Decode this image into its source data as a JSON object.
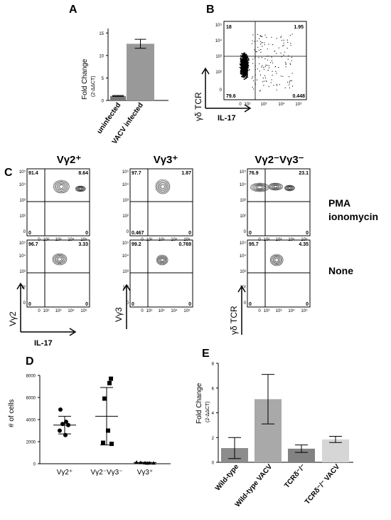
{
  "panels": {
    "A": "A",
    "B": "B",
    "C": "C",
    "D": "D",
    "E": "E"
  },
  "panel_a": {
    "ylabel": "Fold Change",
    "ylabel_sub": "(2-ΔΔCT)",
    "yticks": [
      "0",
      "5",
      "10",
      "15"
    ],
    "categories": [
      "uninfected",
      "VACV infected"
    ],
    "values": [
      1.0,
      12.6
    ],
    "errors": [
      0.1,
      1.0
    ],
    "ylim": [
      0,
      16
    ]
  },
  "panel_b": {
    "ylabel": "γδ TCR",
    "xlabel": "IL-17",
    "quadrants": {
      "ul": "18",
      "ur": "1.95",
      "ll": "79.6",
      "lr": "0.448"
    },
    "yticks": [
      "10⁵",
      "10⁴",
      "10³",
      "10²",
      "0"
    ],
    "xticks": [
      "0",
      "10²",
      "10³",
      "10⁴",
      "10⁵"
    ]
  },
  "panel_c": {
    "col_titles": [
      "Vγ2⁺",
      "Vγ3⁺",
      "Vγ2⁻Vγ3⁻"
    ],
    "row_labels": {
      "stim_1": "PMA",
      "stim_2": "ionomycin",
      "none": "None"
    },
    "ylabels": [
      "Vγ2",
      "Vγ3",
      "γδ TCR"
    ],
    "xlabel": "IL-17",
    "yticks": [
      "10⁵",
      "10⁴",
      "10³",
      "10²",
      "0"
    ],
    "xticks": [
      "0",
      "10²",
      "10³",
      "10⁴",
      "10⁵"
    ],
    "plots": [
      {
        "ul": "91.4",
        "ur": "8.64",
        "ll": "0",
        "lr": "0"
      },
      {
        "ul": "97.7",
        "ur": "1.87",
        "ll": "0.467",
        "lr": "0"
      },
      {
        "ul": "76.9",
        "ur": "23.1",
        "ll": "0",
        "lr": "0"
      },
      {
        "ul": "96.7",
        "ur": "3.33",
        "ll": "0",
        "lr": "0"
      },
      {
        "ul": "99.2",
        "ur": "0.769",
        "ll": "0",
        "lr": "0"
      },
      {
        "ul": "95.7",
        "ur": "4.35",
        "ll": "0",
        "lr": "0"
      }
    ]
  },
  "chart_data": [
    {
      "type": "bar",
      "categories": [
        "uninfected",
        "VACV infected"
      ],
      "values": [
        1.0,
        12.6
      ],
      "errors": [
        0.1,
        1.0
      ],
      "ylabel": "Fold Change (2-ΔΔCT)",
      "ylim": [
        0,
        16
      ]
    },
    {
      "type": "scatter",
      "categories": [
        "Vγ2⁺",
        "Vγ2⁻Vγ3⁻",
        "Vγ3⁺"
      ],
      "ylabel": "# of cells",
      "ylim": [
        0,
        8000
      ],
      "yticks": [
        "0",
        "2000",
        "4000",
        "6000",
        "8000"
      ],
      "points": [
        [
          4900,
          3800,
          3600,
          3500,
          3000,
          2600
        ],
        [
          7700,
          7300,
          5900,
          3000,
          1900,
          1800
        ],
        [
          150,
          120,
          100,
          90,
          80,
          70
        ]
      ],
      "means": [
        3500,
        4300,
        100
      ],
      "sd": [
        800,
        2600,
        30
      ]
    },
    {
      "type": "bar",
      "categories": [
        "Wild-type",
        "Wild-type VACV",
        "TCRδ⁻/⁻",
        "TCRδ⁻/⁻ VACV"
      ],
      "values": [
        1.15,
        5.1,
        1.1,
        1.85
      ],
      "errors": [
        0.85,
        2.0,
        0.3,
        0.25
      ],
      "colors": [
        "#8c8c8c",
        "#a9a9a9",
        "#828282",
        "#d6d6d6"
      ],
      "ylabel": "Fold Change",
      "ylabel_sub": "(2-ΔΔCT)",
      "ylim": [
        0,
        8
      ],
      "yticks": [
        "0",
        "2",
        "4",
        "6",
        "8"
      ]
    }
  ]
}
